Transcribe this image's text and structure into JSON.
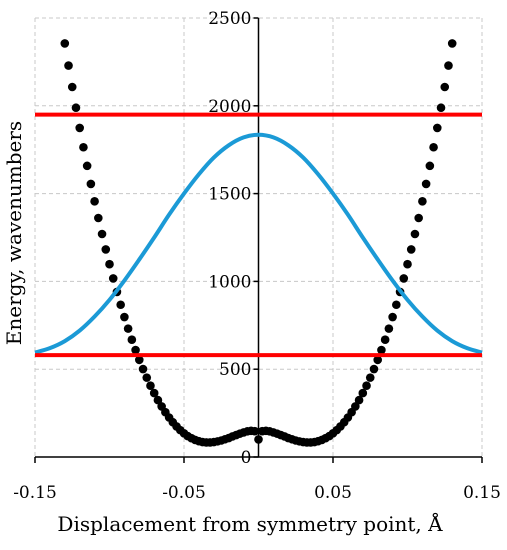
{
  "chart_data": {
    "type": "line",
    "title": "",
    "xlabel": "Displacement from symmetry point, Å",
    "ylabel": "Energy, wavenumbers",
    "xlim": [
      -0.15,
      0.15
    ],
    "ylim": [
      0,
      2500
    ],
    "xticks": [
      -0.15,
      -0.05,
      0.05,
      0.15
    ],
    "xtick_labels": [
      "-0.15",
      "-0.05",
      "0.05",
      "0.15"
    ],
    "yticks": [
      0,
      500,
      1000,
      1500,
      2000,
      2500
    ],
    "ytick_labels": [
      "0",
      "500",
      "1000",
      "1500",
      "2000",
      "2500"
    ],
    "grid": true,
    "legend": "none",
    "series": [
      {
        "style": "markers",
        "color": "#000000",
        "x": [
          -0.13,
          -0.1275,
          -0.125,
          -0.1225,
          -0.12,
          -0.1175,
          -0.115,
          -0.1125,
          -0.11,
          -0.1075,
          -0.105,
          -0.1025,
          -0.1,
          -0.0975,
          -0.095,
          -0.0925,
          -0.09,
          -0.0875,
          -0.085,
          -0.0825,
          -0.08,
          -0.0775,
          -0.075,
          -0.0725,
          -0.07,
          -0.0675,
          -0.065,
          -0.0625,
          -0.06,
          -0.0575,
          -0.055,
          -0.0525,
          -0.05,
          -0.0475,
          -0.045,
          -0.0425,
          -0.04,
          -0.0375,
          -0.035,
          -0.0325,
          -0.03,
          -0.0275,
          -0.025,
          -0.0225,
          -0.02,
          -0.0175,
          -0.015,
          -0.0125,
          -0.01,
          -0.0075,
          -0.005,
          -0.0025,
          0,
          0.0025,
          0.005,
          0.0075,
          0.01,
          0.0125,
          0.015,
          0.0175,
          0.02,
          0.0225,
          0.025,
          0.0275,
          0.03,
          0.0325,
          0.035,
          0.0375,
          0.04,
          0.0425,
          0.045,
          0.0475,
          0.05,
          0.0525,
          0.055,
          0.0575,
          0.06,
          0.0625,
          0.065,
          0.0675,
          0.07,
          0.0725,
          0.075,
          0.0775,
          0.08,
          0.0825,
          0.085,
          0.0875,
          0.09,
          0.0925,
          0.095,
          0.0975,
          0.1,
          0.1025,
          0.105,
          0.1075,
          0.11,
          0.1125,
          0.115,
          0.1175,
          0.12,
          0.1225,
          0.125,
          0.1275,
          0.13
        ],
        "y": [
          2355,
          2229,
          2107,
          1989,
          1874,
          1764,
          1658,
          1555,
          1456,
          1361,
          1270,
          1182,
          1098,
          1017,
          940,
          867,
          797,
          731,
          668,
          609,
          553,
          501,
          452,
          406,
          364,
          324,
          288,
          255,
          225,
          198,
          174,
          153,
          135,
          119,
          107,
          97,
          90,
          85,
          83,
          83,
          85,
          89,
          94,
          101,
          108,
          117,
          125,
          133,
          140,
          146,
          149,
          147,
          100,
          147,
          149,
          146,
          140,
          133,
          125,
          117,
          108,
          101,
          94,
          89,
          85,
          83,
          83,
          85,
          90,
          97,
          107,
          119,
          135,
          153,
          174,
          198,
          225,
          255,
          288,
          324,
          364,
          406,
          452,
          501,
          553,
          609,
          668,
          731,
          797,
          867,
          940,
          1017,
          1098,
          1182,
          1270,
          1361,
          1456,
          1555,
          1658,
          1764,
          1874,
          1989,
          2107,
          2229,
          2355
        ]
      },
      {
        "style": "line",
        "color": "#1b9ad6",
        "x": [
          -0.15,
          -0.14,
          -0.13,
          -0.12,
          -0.11,
          -0.1,
          -0.09,
          -0.08,
          -0.07,
          -0.06,
          -0.05,
          -0.04,
          -0.03,
          -0.02,
          -0.01,
          0,
          0.01,
          0.02,
          0.03,
          0.04,
          0.05,
          0.06,
          0.07,
          0.08,
          0.09,
          0.1,
          0.11,
          0.12,
          0.13,
          0.14,
          0.15
        ],
        "y": [
          595,
          620,
          660,
          720,
          800,
          895,
          1005,
          1125,
          1250,
          1380,
          1500,
          1610,
          1705,
          1775,
          1820,
          1835,
          1820,
          1775,
          1705,
          1610,
          1500,
          1380,
          1250,
          1125,
          1005,
          895,
          800,
          720,
          660,
          620,
          595
        ]
      },
      {
        "style": "line",
        "color": "#ff0000",
        "x": [
          -0.15,
          0.15
        ],
        "y": [
          580,
          580
        ]
      },
      {
        "style": "line",
        "color": "#ff0000",
        "x": [
          -0.15,
          0.15
        ],
        "y": [
          1950,
          1950
        ]
      }
    ]
  }
}
